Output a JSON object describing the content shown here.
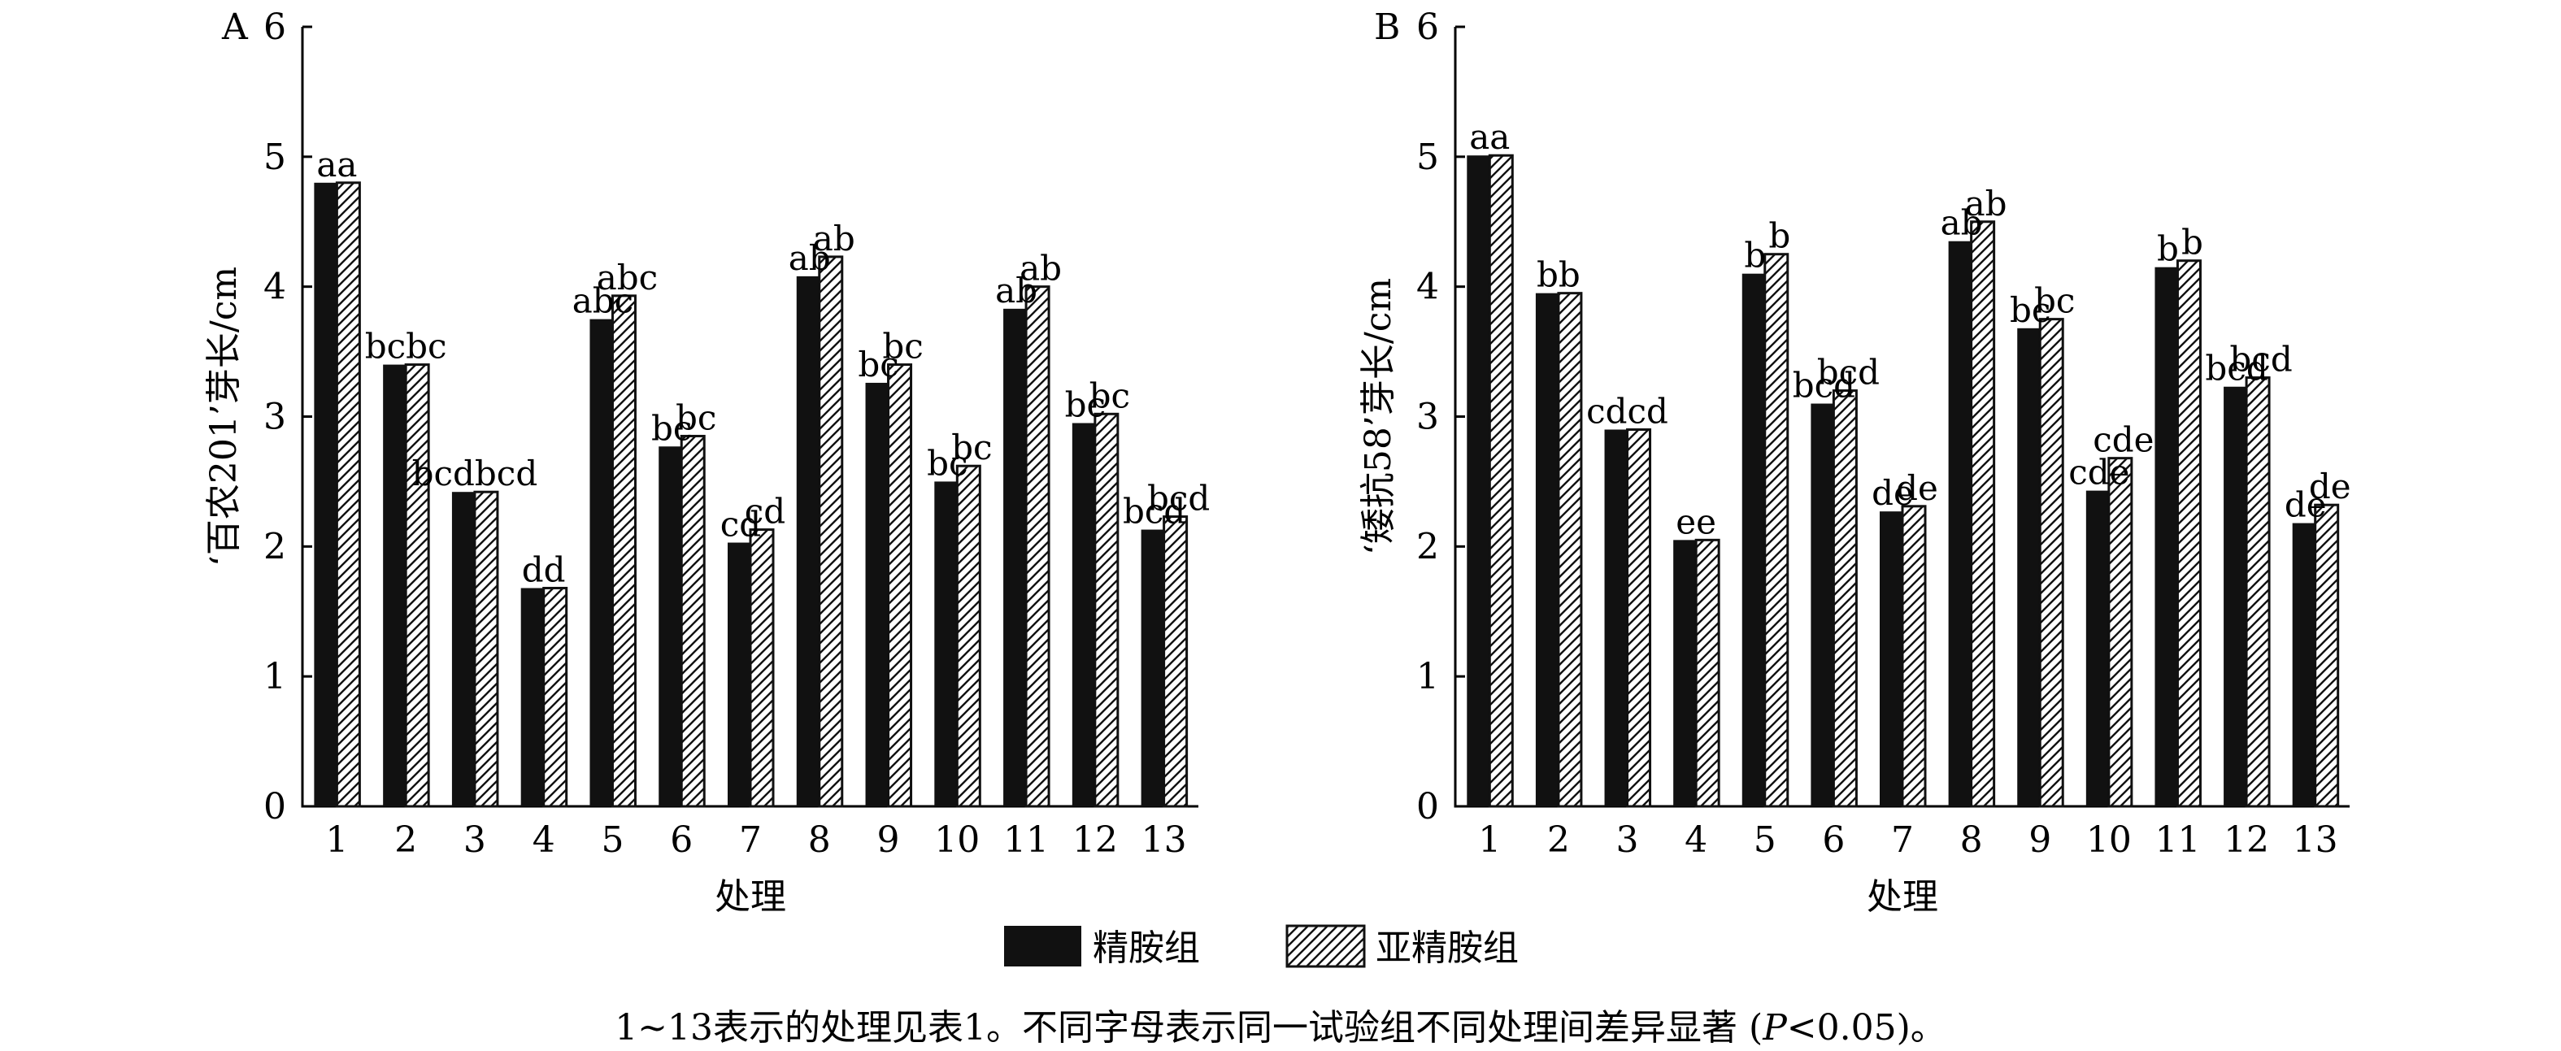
{
  "chart_data": [
    {
      "type": "bar",
      "panel_label": "A",
      "categories": [
        "1",
        "2",
        "3",
        "4",
        "5",
        "6",
        "7",
        "8",
        "9",
        "10",
        "11",
        "12",
        "13"
      ],
      "xlabel": "处理",
      "ylabel": "‘百农201’芽长/cm",
      "ylim": [
        0,
        6
      ],
      "yticks": [
        "0",
        "1",
        "2",
        "3",
        "4",
        "5",
        "6"
      ],
      "grid": false,
      "series": [
        {
          "name": "精胺组",
          "values": [
            4.8,
            3.4,
            2.42,
            1.68,
            3.75,
            2.77,
            2.03,
            4.08,
            3.26,
            2.5,
            3.83,
            2.95,
            2.13
          ],
          "letters": [
            "a",
            "bc",
            "bcd",
            "d",
            "abc",
            "bc",
            "cd",
            "ab",
            "bc",
            "bc",
            "ab",
            "bc",
            "bcd"
          ]
        },
        {
          "name": "亚精胺组",
          "values": [
            4.8,
            3.4,
            2.42,
            1.68,
            3.93,
            2.85,
            2.13,
            4.23,
            3.4,
            2.62,
            4.0,
            3.02,
            2.23
          ],
          "letters": [
            "a",
            "bc",
            "bcd",
            "d",
            "abc",
            "bc",
            "cd",
            "ab",
            "bc",
            "bc",
            "ab",
            "bc",
            "bcd"
          ]
        }
      ]
    },
    {
      "type": "bar",
      "panel_label": "B",
      "categories": [
        "1",
        "2",
        "3",
        "4",
        "5",
        "6",
        "7",
        "8",
        "9",
        "10",
        "11",
        "12",
        "13"
      ],
      "xlabel": "处理",
      "ylabel": "‘矮抗58’芽长/cm",
      "ylim": [
        0,
        6
      ],
      "yticks": [
        "0",
        "1",
        "2",
        "3",
        "4",
        "5",
        "6"
      ],
      "grid": false,
      "series": [
        {
          "name": "精胺组",
          "values": [
            5.01,
            3.95,
            2.9,
            2.05,
            4.1,
            3.1,
            2.27,
            4.35,
            3.68,
            2.43,
            4.15,
            3.23,
            2.18
          ],
          "letters": [
            "a",
            "b",
            "cd",
            "e",
            "b",
            "bcd",
            "de",
            "ab",
            "bc",
            "cde",
            "b",
            "bcd",
            "de"
          ]
        },
        {
          "name": "亚精胺组",
          "values": [
            5.01,
            3.95,
            2.9,
            2.05,
            4.25,
            3.2,
            2.31,
            4.5,
            3.75,
            2.68,
            4.2,
            3.3,
            2.32
          ],
          "letters": [
            "a",
            "b",
            "cd",
            "e",
            "b",
            "bcd",
            "de",
            "ab",
            "bc",
            "cde",
            "b",
            "bcd",
            "de"
          ]
        }
      ]
    }
  ],
  "legend": [
    {
      "label": "精胺组",
      "style": "solid",
      "color": "#111111"
    },
    {
      "label": "亚精胺组",
      "style": "hatched",
      "color": "#111111"
    }
  ],
  "caption": {
    "main": "1~13表示的处理见表1。不同字母表示同一试验组不同处理间差异显著 (",
    "p_symbol": "P",
    "tail": "<0.05)。"
  }
}
